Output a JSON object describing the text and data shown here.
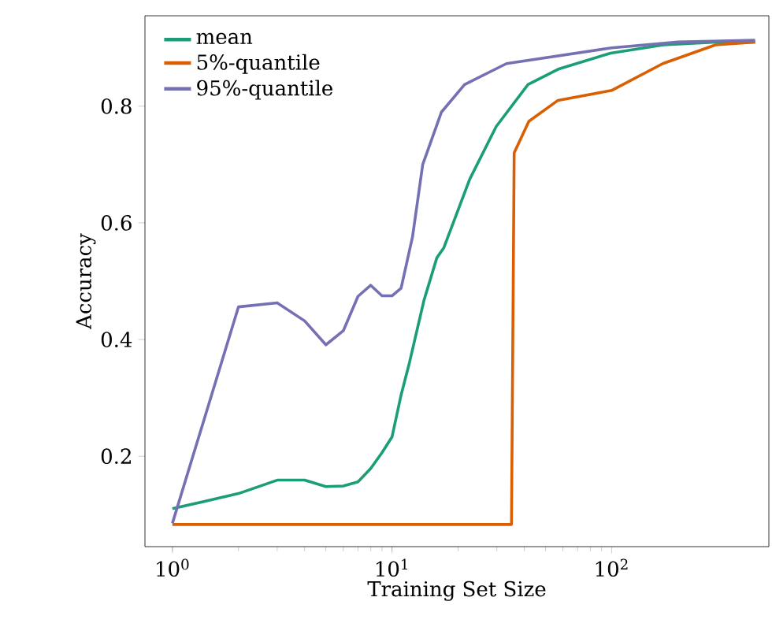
{
  "chart_data": {
    "type": "line",
    "xlabel": "Training Set Size",
    "ylabel": "Accuracy",
    "log": "x",
    "xlim": [
      0.75,
      520
    ],
    "ylim": [
      0.045,
      0.955
    ],
    "xticks": [
      {
        "value": 1,
        "label": "10$^{0}$"
      },
      {
        "value": 10,
        "label": "10$^{1}$"
      },
      {
        "value": 100,
        "label": "10$^{2}$"
      }
    ],
    "yticks": [
      0.2,
      0.4,
      0.6,
      0.8
    ],
    "grid": false,
    "legend": "top left",
    "marker": "none",
    "line_style": "solid",
    "series": [
      {
        "name": "mean",
        "color": "#1b9e77",
        "x": [
          1,
          2,
          3,
          4,
          5,
          6,
          7,
          8,
          9,
          10,
          11,
          12,
          14,
          16,
          17.2,
          22.6,
          29.8,
          41.6,
          57.6,
          99,
          172,
          300,
          450
        ],
        "values": [
          0.11,
          0.136,
          0.159,
          0.159,
          0.148,
          0.149,
          0.156,
          0.179,
          0.206,
          0.233,
          0.305,
          0.36,
          0.468,
          0.54,
          0.557,
          0.675,
          0.765,
          0.837,
          0.864,
          0.891,
          0.905,
          0.91,
          0.91
        ]
      },
      {
        "name": "5%-quantile",
        "color": "#d95f02",
        "x": [
          1,
          35,
          36,
          42,
          57,
          100,
          171,
          297,
          450
        ],
        "values": [
          0.083,
          0.083,
          0.72,
          0.774,
          0.81,
          0.827,
          0.873,
          0.905,
          0.91
        ]
      },
      {
        "name": "95%-quantile",
        "color": "#7570b3",
        "x": [
          1,
          2,
          3,
          4,
          5,
          6,
          7,
          8,
          9,
          10,
          11,
          12.4,
          13.8,
          16.8,
          21.4,
          33.2,
          100,
          200,
          450
        ],
        "values": [
          0.085,
          0.456,
          0.463,
          0.432,
          0.391,
          0.415,
          0.474,
          0.493,
          0.475,
          0.475,
          0.488,
          0.576,
          0.7,
          0.79,
          0.837,
          0.873,
          0.9,
          0.91,
          0.913
        ]
      }
    ]
  }
}
